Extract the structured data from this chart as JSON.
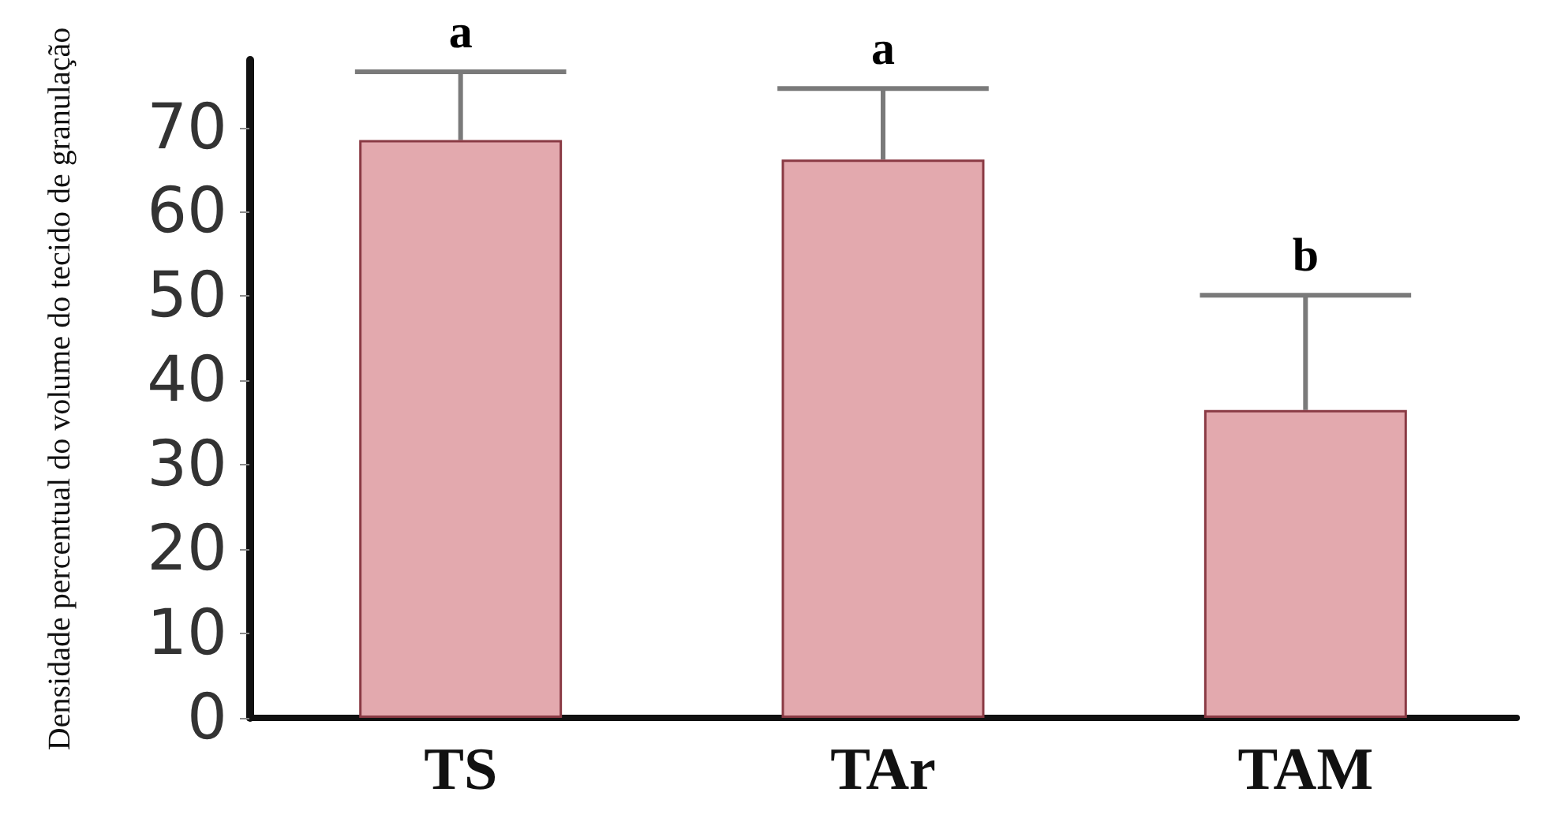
{
  "chart_data": {
    "type": "bar",
    "ylabel": "Densidade percentual do volume do tecido de granulação",
    "categories": [
      "TS",
      "TAr",
      "TAM"
    ],
    "values": [
      68.5,
      66.2,
      36.5
    ],
    "color": "#e3a9ae",
    "errors": [
      [
        68.5,
        76.6
      ],
      [
        66.2,
        74.6
      ],
      [
        36.5,
        50.1
      ]
    ],
    "ylim": [
      0,
      78
    ],
    "yticks": [
      0,
      10,
      20,
      30,
      40,
      50,
      60,
      70
    ],
    "annotations": [
      {
        "text": "a",
        "x": "TS",
        "y": 76.6
      },
      {
        "text": "a",
        "x": "TAr",
        "y": 74.6
      },
      {
        "text": "b",
        "x": "TAM",
        "y": 50.1
      }
    ],
    "grid": false
  }
}
